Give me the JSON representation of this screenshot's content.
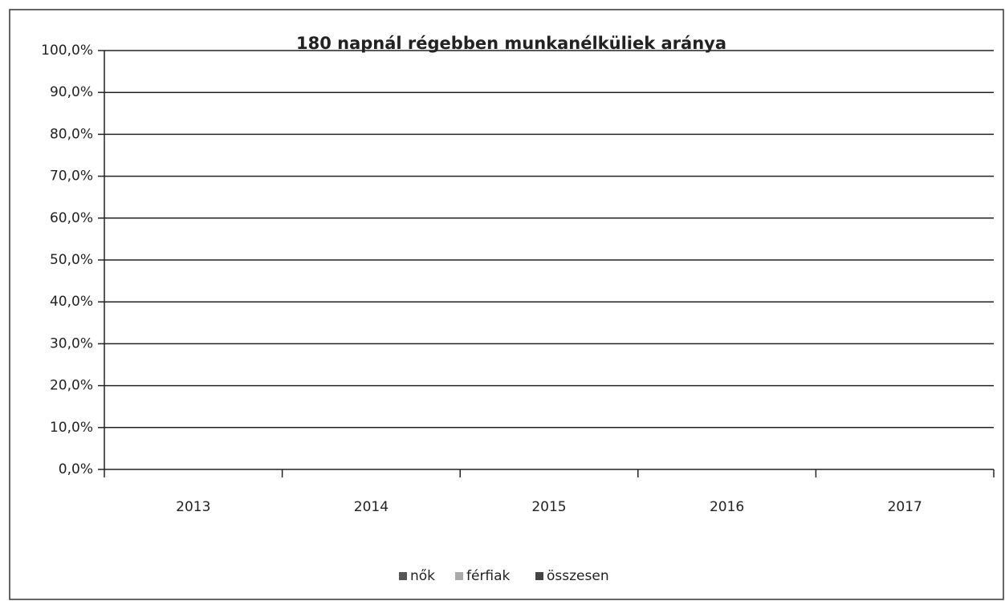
{
  "chart_data": {
    "type": "bar",
    "title": "180 napnál régebben munkanélküliek aránya",
    "categories": [
      "2013",
      "2014",
      "2015",
      "2016",
      "2017"
    ],
    "series": [
      {
        "name": "nők",
        "color": "#555555",
        "values": [
          0,
          0,
          0,
          0,
          0
        ]
      },
      {
        "name": "férfiak",
        "color": "#aaaaaa",
        "values": [
          0,
          0,
          0,
          0,
          0
        ]
      },
      {
        "name": "összesen",
        "color": "#444444",
        "values": [
          0,
          0,
          0,
          0,
          0
        ]
      }
    ],
    "ylim": [
      0,
      100
    ],
    "yticks": [
      {
        "value": 0,
        "label": "0,0%"
      },
      {
        "value": 10,
        "label": "10,0%"
      },
      {
        "value": 20,
        "label": "20,0%"
      },
      {
        "value": 30,
        "label": "30,0%"
      },
      {
        "value": 40,
        "label": "40,0%"
      },
      {
        "value": 50,
        "label": "50,0%"
      },
      {
        "value": 60,
        "label": "60,0%"
      },
      {
        "value": 70,
        "label": "70,0%"
      },
      {
        "value": 80,
        "label": "80,0%"
      },
      {
        "value": 90,
        "label": "90,0%"
      },
      {
        "value": 100,
        "label": "100,0%"
      }
    ],
    "grid": true,
    "legend": "bottom"
  }
}
